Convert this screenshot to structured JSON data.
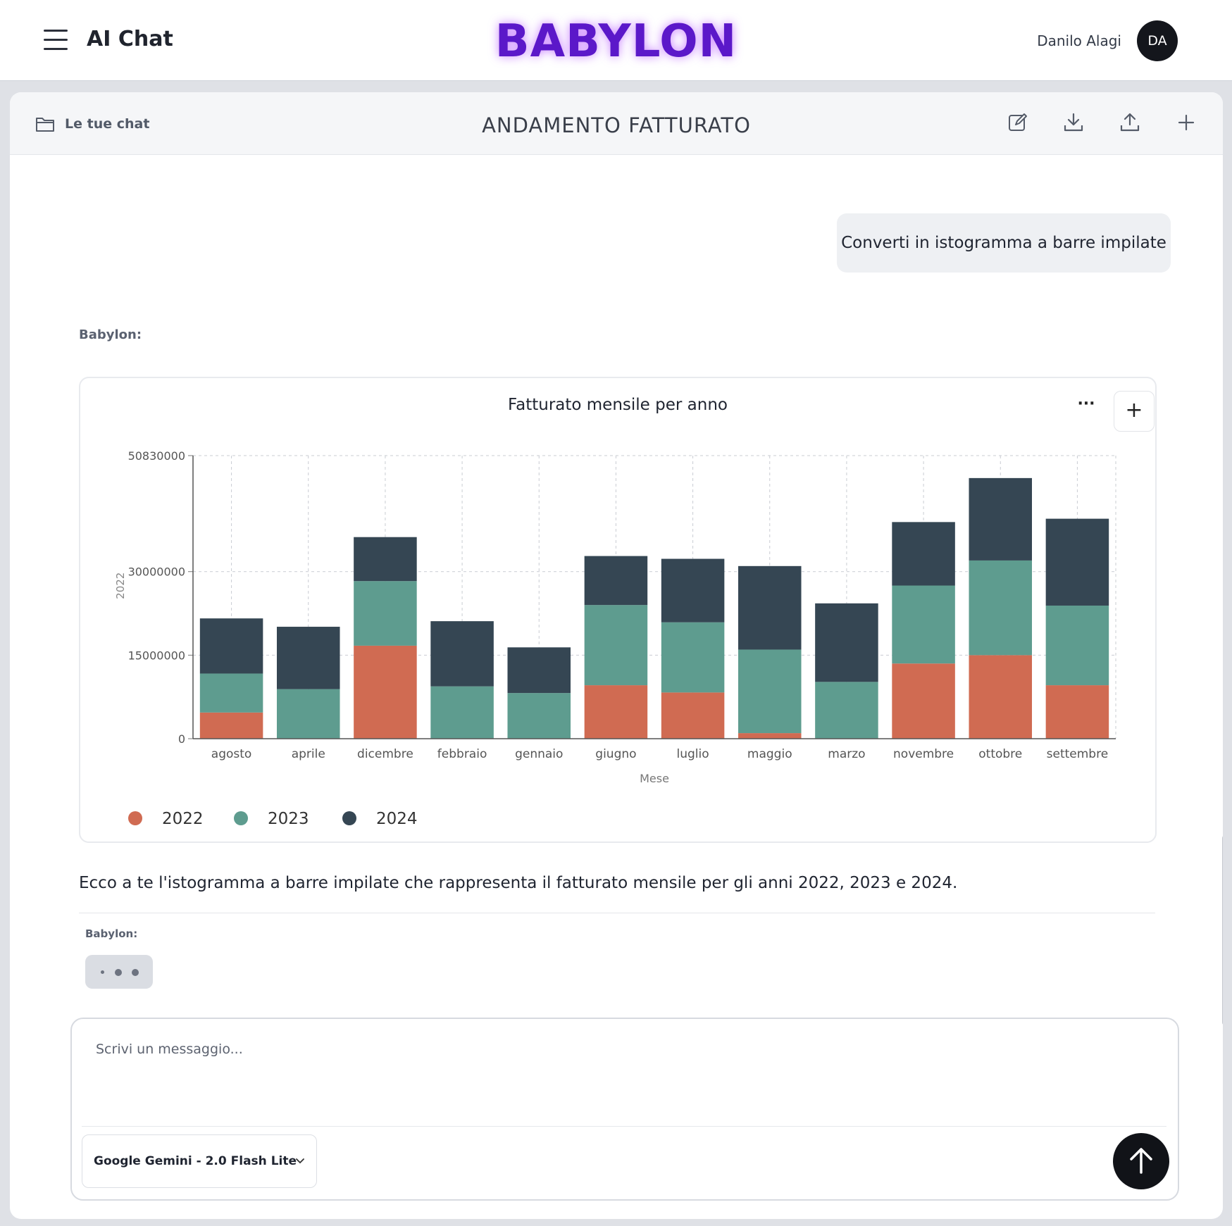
{
  "header": {
    "app_title": "AI Chat",
    "brand": "BABYLON",
    "user_name": "Danilo Alagi",
    "avatar_initials": "DA",
    "brand_color": "#5b18c9"
  },
  "chat": {
    "folder_label": "Le tue chat",
    "title": "ANDAMENTO FATTURATO",
    "header_icons": [
      "edit-icon",
      "download-icon",
      "upload-icon",
      "plus-icon"
    ]
  },
  "messages": {
    "user_message": "Converti in istogramma a barre impilate",
    "bot_label": "Babylon:",
    "bot_answer": "Ecco a te l'istogramma a barre impilate che rappresenta il fatturato mensile per gli anni 2022, 2023 e 2024.",
    "bot_label_2": "Babylon:"
  },
  "chart_data": {
    "type": "bar",
    "stacked": true,
    "title": "Fatturato mensile per anno",
    "xlabel": "Mese",
    "ylabel": "2022",
    "ylim": [
      0,
      50830000
    ],
    "y_ticks": [
      0,
      15000000,
      30000000,
      50830000
    ],
    "y_tick_labels": [
      "0",
      "15000000",
      "30000000",
      "50830000"
    ],
    "grid": true,
    "legend_position": "bottom-left",
    "categories": [
      "agosto",
      "aprile",
      "dicembre",
      "febbraio",
      "gennaio",
      "giugno",
      "luglio",
      "maggio",
      "marzo",
      "novembre",
      "ottobre",
      "settembre"
    ],
    "series": [
      {
        "name": "2022",
        "color": "#d06b52",
        "values": [
          4700000,
          0,
          16700000,
          0,
          0,
          9600000,
          8300000,
          1000000,
          0,
          13500000,
          15000000,
          9600000
        ]
      },
      {
        "name": "2023",
        "color": "#5e9c8f",
        "values": [
          7000000,
          8900000,
          11600000,
          9400000,
          8200000,
          14400000,
          12600000,
          15000000,
          10200000,
          14000000,
          17000000,
          14300000
        ]
      },
      {
        "name": "2024",
        "color": "#354653",
        "values": [
          9900000,
          11200000,
          7900000,
          11700000,
          8200000,
          8800000,
          11400000,
          15000000,
          14100000,
          11400000,
          14800000,
          15600000
        ]
      }
    ]
  },
  "composer": {
    "placeholder": "Scrivi un messaggio...",
    "model": "Google Gemini - 2.0 Flash Lite"
  }
}
